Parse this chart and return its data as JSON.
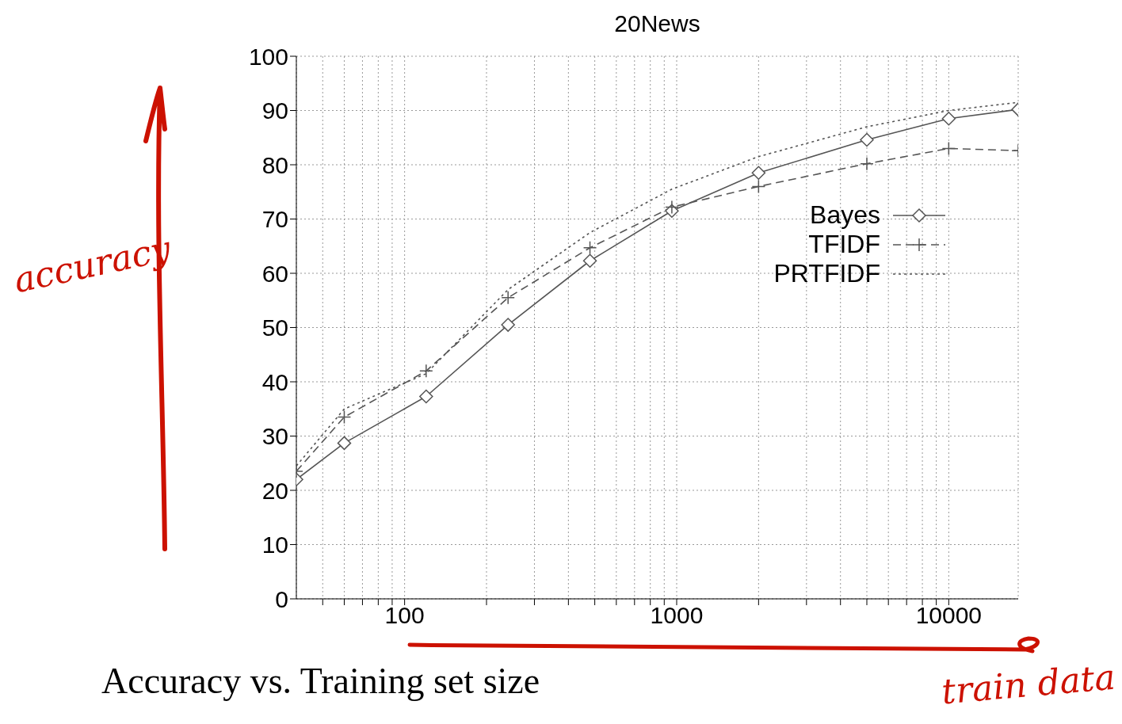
{
  "chart_data": {
    "type": "line",
    "title": "20News",
    "xlabel": "train data",
    "ylabel": "accuracy",
    "annotations": [
      "Accuracy vs. Training set size"
    ],
    "log": "x",
    "grid": true,
    "legend": "right",
    "x": [
      40,
      60,
      120,
      240,
      480,
      960,
      2000,
      5000,
      10000,
      18000
    ],
    "xlim": [
      40,
      18000
    ],
    "xticks": [
      {
        "value": 50,
        "label": null
      },
      {
        "value": 60,
        "label": null
      },
      {
        "value": 70,
        "label": null
      },
      {
        "value": 80,
        "label": null
      },
      {
        "value": 90,
        "label": null
      },
      100,
      {
        "value": 200,
        "label": null
      },
      {
        "value": 300,
        "label": null
      },
      {
        "value": 400,
        "label": null
      },
      {
        "value": 500,
        "label": null
      },
      {
        "value": 600,
        "label": null
      },
      {
        "value": 700,
        "label": null
      },
      {
        "value": 800,
        "label": null
      },
      {
        "value": 900,
        "label": null
      },
      1000,
      {
        "value": 2000,
        "label": null
      },
      {
        "value": 3000,
        "label": null
      },
      {
        "value": 4000,
        "label": null
      },
      {
        "value": 5000,
        "label": null
      },
      {
        "value": 6000,
        "label": null
      },
      {
        "value": 7000,
        "label": null
      },
      {
        "value": 8000,
        "label": null
      },
      {
        "value": 9000,
        "label": null
      },
      10000
    ],
    "ylim": [
      0,
      100
    ],
    "yticks": [
      0,
      10,
      20,
      30,
      40,
      50,
      60,
      70,
      80,
      90,
      100
    ],
    "series": [
      {
        "name": "Bayes",
        "color": "#555555",
        "marker": "diamond",
        "line_style": "solid",
        "values": [
          22,
          28.7,
          37.3,
          50.5,
          62.3,
          71.5,
          78.5,
          84.6,
          88.5,
          90.2
        ]
      },
      {
        "name": "TFIDF",
        "color": "#555555",
        "marker": "cross",
        "line_style": "dashed",
        "values": [
          23.5,
          33.5,
          42,
          55.5,
          64.7,
          72.2,
          76,
          80.2,
          83,
          82.6
        ]
      },
      {
        "name": "PRTFIDF",
        "color": "#555555",
        "marker": "none",
        "line_style": "dotted",
        "values": [
          24.5,
          35,
          41.5,
          57,
          67.5,
          75.5,
          81.5,
          87,
          90,
          91.5
        ]
      }
    ]
  }
}
